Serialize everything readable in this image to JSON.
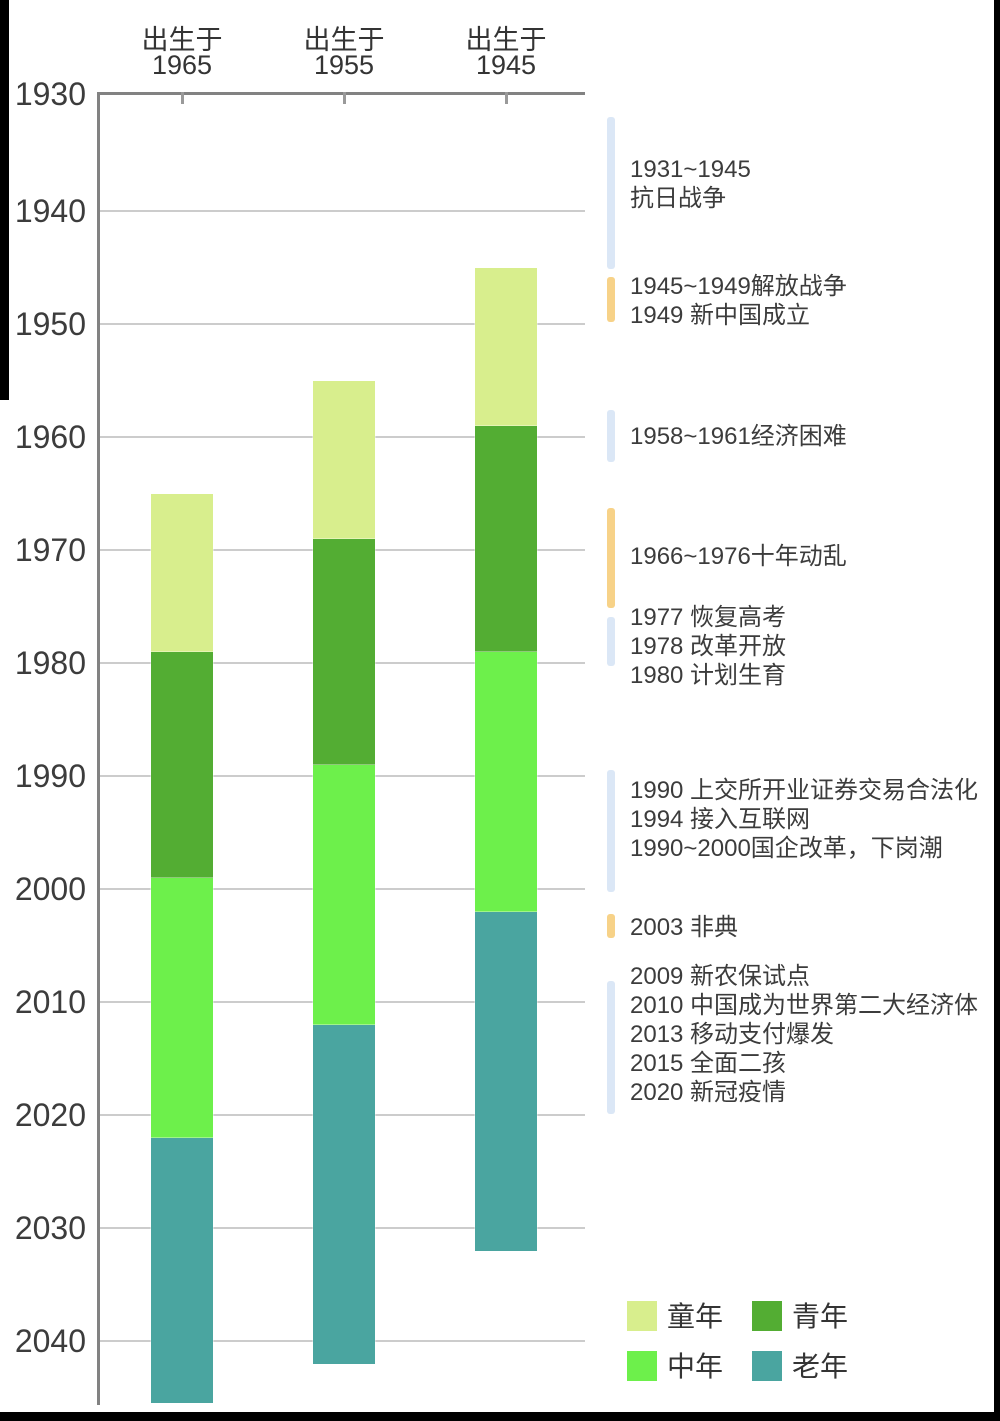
{
  "chart_data": {
    "type": "bar",
    "subtype": "stacked-vertical-timeline-columns",
    "title": "",
    "y_axis": {
      "unit": "year",
      "min": 1930,
      "max": 2045,
      "direction": "down",
      "ticks": [
        1930,
        1940,
        1950,
        1960,
        1970,
        1980,
        1990,
        2000,
        2010,
        2020,
        2030,
        2040
      ],
      "grid": true
    },
    "x_axis": {
      "header_prefix": "出生于",
      "categories": [
        "1965",
        "1955",
        "1945"
      ]
    },
    "stages": [
      {
        "name": "童年",
        "color": "#d8ee8d",
        "age_from": 0,
        "age_to": 14
      },
      {
        "name": "青年",
        "color": "#53ad33",
        "age_from": 14,
        "age_to": 34
      },
      {
        "name": "中年",
        "color": "#6df04b",
        "age_from": 34,
        "age_to": 57
      },
      {
        "name": "老年",
        "color": "#4aa5a0",
        "age_from": 57,
        "age_to": 87
      }
    ],
    "columns": [
      {
        "header_line1": "出生于",
        "header_line2": "1965",
        "birth_year": 1965,
        "segments": [
          {
            "stage": "童年",
            "from": 1965,
            "to": 1979
          },
          {
            "stage": "青年",
            "from": 1979,
            "to": 1999
          },
          {
            "stage": "中年",
            "from": 1999,
            "to": 2022
          },
          {
            "stage": "老年",
            "from": 2022,
            "to": 2045.5,
            "clipped_at_axis_end": true
          }
        ]
      },
      {
        "header_line1": "出生于",
        "header_line2": "1955",
        "birth_year": 1955,
        "segments": [
          {
            "stage": "童年",
            "from": 1955,
            "to": 1969
          },
          {
            "stage": "青年",
            "from": 1969,
            "to": 1989
          },
          {
            "stage": "中年",
            "from": 1989,
            "to": 2012
          },
          {
            "stage": "老年",
            "from": 2012,
            "to": 2042
          }
        ]
      },
      {
        "header_line1": "出生于",
        "header_line2": "1945",
        "birth_year": 1945,
        "segments": [
          {
            "stage": "童年",
            "from": 1945,
            "to": 1959
          },
          {
            "stage": "青年",
            "from": 1959,
            "to": 1979
          },
          {
            "stage": "中年",
            "from": 1979,
            "to": 2002
          },
          {
            "stage": "老年",
            "from": 2002,
            "to": 2032
          }
        ]
      }
    ],
    "events": [
      {
        "marker_color": "#dbe7f6",
        "from": 1931.7,
        "to": 1945.1,
        "text_top_year": 1935.0,
        "lines": [
          "1931~1945",
          "抗日战争"
        ]
      },
      {
        "marker_color": "#f7d288",
        "from": 1945.8,
        "to": 1949.8,
        "text_top_year": 1945.4,
        "lines": [
          "1945~1949解放战争",
          "1949 新中国成立"
        ]
      },
      {
        "marker_color": "#dbe7f6",
        "from": 1957.6,
        "to": 1962.2,
        "text_top_year": 1958.7,
        "lines": [
          "1958~1961经济困难"
        ]
      },
      {
        "marker_color": "#f7d288",
        "from": 1966.3,
        "to": 1975.1,
        "text_top_year": 1969.3,
        "lines": [
          "1966~1976十年动乱"
        ]
      },
      {
        "marker_color": "#dbe7f6",
        "from": 1975.9,
        "to": 1980.3,
        "text_top_year": 1974.7,
        "lines": [
          "1977 恢复高考",
          "1978 改革开放",
          "1980 计划生育"
        ]
      },
      {
        "marker_color": "#dbe7f6",
        "from": 1989.5,
        "to": 2000.3,
        "text_top_year": 1990.0,
        "lines": [
          "1990 上交所开业证券交易合法化",
          "1994 接入互联网",
          "1990~2000国企改革，下岗潮"
        ]
      },
      {
        "marker_color": "#f7d288",
        "from": 2002.2,
        "to": 2004.3,
        "text_top_year": 2002.1,
        "lines": [
          "2003 非典"
        ]
      },
      {
        "marker_color": "#dbe7f6",
        "from": 2008.1,
        "to": 2019.9,
        "text_top_year": 2006.5,
        "lines": [
          "2009 新农保试点",
          "2010 中国成为世界第二大经济体",
          "2013 移动支付爆发",
          "2015 全面二孩",
          "2020 新冠疫情"
        ]
      }
    ],
    "legend": {
      "position": "bottom-right",
      "items": [
        "童年",
        "青年",
        "中年",
        "老年"
      ]
    },
    "colors": {
      "event_marker_blue": "#dbe7f6",
      "event_marker_orange": "#f7d288",
      "gridline": "#cccccc",
      "axis": "#828282",
      "text": "#3c3c3c",
      "screenshot_frame": "#000000"
    }
  }
}
